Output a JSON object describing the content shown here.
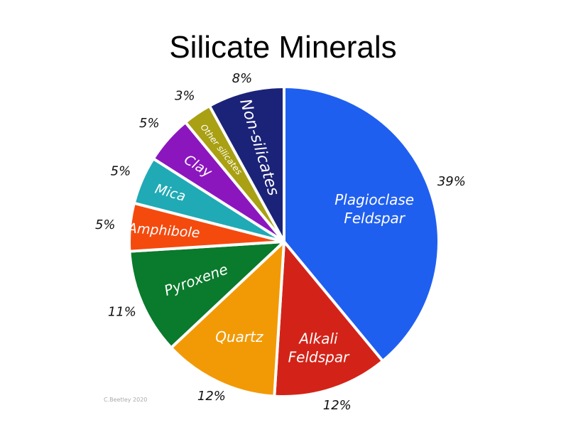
{
  "chart_data": {
    "type": "pie",
    "title": "Silicate Minerals",
    "slices": [
      {
        "label": "Plagioclase\nFeldspar",
        "value": 39,
        "pct_label": "39%",
        "color": "#1f5ff0"
      },
      {
        "label": "Alkali\nFeldspar",
        "value": 12,
        "pct_label": "12%",
        "color": "#d32318"
      },
      {
        "label": "Quartz",
        "value": 12,
        "pct_label": "12%",
        "color": "#f29a06"
      },
      {
        "label": "Pyroxene",
        "value": 11,
        "pct_label": "11%",
        "color": "#0a7a2c"
      },
      {
        "label": "Amphibole",
        "value": 5,
        "pct_label": "5%",
        "color": "#f54a0e"
      },
      {
        "label": "Mica",
        "value": 5,
        "pct_label": "5%",
        "color": "#20aab5"
      },
      {
        "label": "Clay",
        "value": 5,
        "pct_label": "5%",
        "color": "#8c16be"
      },
      {
        "label": "Other silicates",
        "value": 3,
        "pct_label": "3%",
        "color": "#a9a013"
      },
      {
        "label": "Non-silicates",
        "value": 8,
        "pct_label": "8%",
        "color": "#1b2378"
      }
    ]
  },
  "credit": "C.Beetley 2020"
}
